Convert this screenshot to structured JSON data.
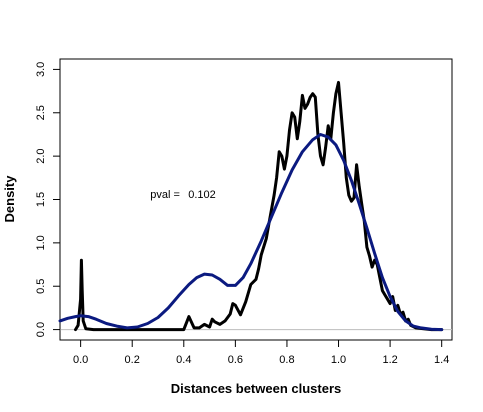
{
  "chart_data": {
    "type": "line",
    "title": "",
    "xlabel": "Distances between clusters",
    "ylabel": "Density",
    "xlim": [
      -0.08,
      1.44
    ],
    "ylim": [
      -0.12,
      3.12
    ],
    "x_ticks": [
      0.0,
      0.2,
      0.4,
      0.6,
      0.8,
      1.0,
      1.2,
      1.4
    ],
    "x_tick_labels": [
      "0.0",
      "0.2",
      "0.4",
      "0.6",
      "0.8",
      "1.0",
      "1.2",
      "1.4"
    ],
    "y_ticks": [
      0.0,
      0.5,
      1.0,
      1.5,
      2.0,
      2.5,
      3.0
    ],
    "y_tick_labels": [
      "0.0",
      "0.5",
      "1.0",
      "1.5",
      "2.0",
      "2.5",
      "3.0"
    ],
    "baseline": 0,
    "grid": false,
    "legend": "none",
    "annotation": {
      "text_label": "pval =",
      "text_value": "0.102",
      "x": 0.27,
      "y": 1.52
    },
    "series": [
      {
        "color": "#000000",
        "line_width": 3,
        "points": [
          [
            -0.02,
            0.0
          ],
          [
            -0.01,
            0.05
          ],
          [
            0.0,
            0.35
          ],
          [
            0.003,
            0.8
          ],
          [
            0.006,
            0.45
          ],
          [
            0.01,
            0.1
          ],
          [
            0.02,
            0.01
          ],
          [
            0.05,
            0.0
          ],
          [
            0.3,
            0.0
          ],
          [
            0.4,
            0.0
          ],
          [
            0.42,
            0.15
          ],
          [
            0.44,
            0.02
          ],
          [
            0.46,
            0.02
          ],
          [
            0.48,
            0.06
          ],
          [
            0.5,
            0.03
          ],
          [
            0.51,
            0.12
          ],
          [
            0.52,
            0.09
          ],
          [
            0.54,
            0.06
          ],
          [
            0.56,
            0.1
          ],
          [
            0.58,
            0.18
          ],
          [
            0.59,
            0.3
          ],
          [
            0.6,
            0.28
          ],
          [
            0.62,
            0.17
          ],
          [
            0.64,
            0.32
          ],
          [
            0.66,
            0.52
          ],
          [
            0.68,
            0.58
          ],
          [
            0.69,
            0.7
          ],
          [
            0.7,
            0.86
          ],
          [
            0.72,
            1.05
          ],
          [
            0.73,
            1.22
          ],
          [
            0.75,
            1.55
          ],
          [
            0.76,
            1.75
          ],
          [
            0.77,
            2.05
          ],
          [
            0.78,
            2.0
          ],
          [
            0.79,
            1.85
          ],
          [
            0.8,
            2.0
          ],
          [
            0.81,
            2.3
          ],
          [
            0.82,
            2.5
          ],
          [
            0.83,
            2.45
          ],
          [
            0.84,
            2.2
          ],
          [
            0.85,
            2.4
          ],
          [
            0.86,
            2.7
          ],
          [
            0.87,
            2.55
          ],
          [
            0.88,
            2.6
          ],
          [
            0.89,
            2.68
          ],
          [
            0.9,
            2.72
          ],
          [
            0.91,
            2.68
          ],
          [
            0.92,
            2.25
          ],
          [
            0.93,
            2.0
          ],
          [
            0.94,
            1.9
          ],
          [
            0.95,
            2.1
          ],
          [
            0.96,
            2.35
          ],
          [
            0.97,
            2.2
          ],
          [
            0.98,
            2.5
          ],
          [
            0.99,
            2.72
          ],
          [
            1.0,
            2.85
          ],
          [
            1.01,
            2.5
          ],
          [
            1.02,
            2.15
          ],
          [
            1.03,
            1.75
          ],
          [
            1.04,
            1.55
          ],
          [
            1.05,
            1.48
          ],
          [
            1.06,
            1.52
          ],
          [
            1.07,
            1.9
          ],
          [
            1.08,
            1.65
          ],
          [
            1.09,
            1.45
          ],
          [
            1.1,
            1.25
          ],
          [
            1.11,
            0.95
          ],
          [
            1.12,
            0.85
          ],
          [
            1.13,
            0.72
          ],
          [
            1.14,
            0.8
          ],
          [
            1.15,
            0.75
          ],
          [
            1.16,
            0.6
          ],
          [
            1.17,
            0.45
          ],
          [
            1.18,
            0.4
          ],
          [
            1.19,
            0.35
          ],
          [
            1.2,
            0.3
          ],
          [
            1.21,
            0.38
          ],
          [
            1.22,
            0.22
          ],
          [
            1.23,
            0.28
          ],
          [
            1.24,
            0.18
          ],
          [
            1.25,
            0.2
          ],
          [
            1.26,
            0.1
          ],
          [
            1.27,
            0.12
          ],
          [
            1.28,
            0.05
          ],
          [
            1.3,
            0.02
          ],
          [
            1.33,
            0.01
          ],
          [
            1.36,
            0.0
          ],
          [
            1.4,
            0.0
          ]
        ]
      },
      {
        "color": "#0b1a80",
        "line_width": 3,
        "points": [
          [
            -0.08,
            0.1
          ],
          [
            -0.05,
            0.13
          ],
          [
            -0.02,
            0.15
          ],
          [
            0.0,
            0.16
          ],
          [
            0.03,
            0.15
          ],
          [
            0.06,
            0.12
          ],
          [
            0.1,
            0.07
          ],
          [
            0.14,
            0.04
          ],
          [
            0.18,
            0.02
          ],
          [
            0.22,
            0.03
          ],
          [
            0.26,
            0.07
          ],
          [
            0.3,
            0.14
          ],
          [
            0.34,
            0.25
          ],
          [
            0.38,
            0.39
          ],
          [
            0.42,
            0.52
          ],
          [
            0.45,
            0.6
          ],
          [
            0.48,
            0.64
          ],
          [
            0.51,
            0.63
          ],
          [
            0.54,
            0.58
          ],
          [
            0.57,
            0.51
          ],
          [
            0.6,
            0.51
          ],
          [
            0.63,
            0.6
          ],
          [
            0.66,
            0.76
          ],
          [
            0.7,
            1.02
          ],
          [
            0.74,
            1.3
          ],
          [
            0.78,
            1.58
          ],
          [
            0.82,
            1.84
          ],
          [
            0.86,
            2.05
          ],
          [
            0.9,
            2.19
          ],
          [
            0.93,
            2.25
          ],
          [
            0.96,
            2.22
          ],
          [
            0.99,
            2.13
          ],
          [
            1.02,
            1.95
          ],
          [
            1.05,
            1.72
          ],
          [
            1.08,
            1.45
          ],
          [
            1.11,
            1.17
          ],
          [
            1.14,
            0.88
          ],
          [
            1.17,
            0.6
          ],
          [
            1.2,
            0.38
          ],
          [
            1.23,
            0.21
          ],
          [
            1.26,
            0.1
          ],
          [
            1.29,
            0.04
          ],
          [
            1.32,
            0.02
          ],
          [
            1.36,
            0.005
          ],
          [
            1.4,
            0.0
          ]
        ]
      }
    ]
  }
}
